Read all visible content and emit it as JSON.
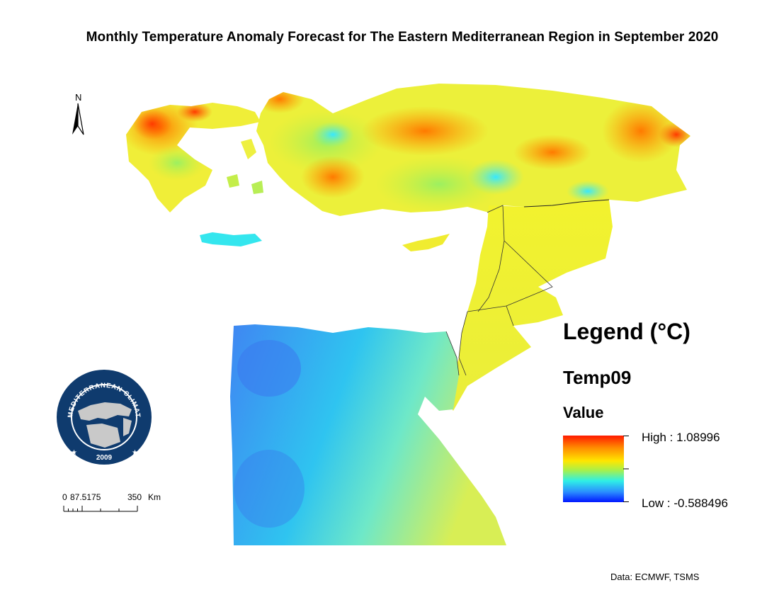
{
  "map": {
    "title": "Monthly Temperature Anomaly Forecast for The Eastern Mediterranean Region in September 2020",
    "north_label": "N",
    "credit": "Data: ECMWF, TSMS",
    "icons": [
      "north-arrow-icon",
      "eastern-mediterranean-climate-centre-logo"
    ]
  },
  "scale_bar": {
    "labels": [
      "0",
      "87.5175",
      "350",
      "Km"
    ]
  },
  "legend": {
    "title": "Legend (°C)",
    "layer_name": "Temp09",
    "field_name": "Value",
    "high_label": "High : 1.08996",
    "low_label": "Low : -0.588496",
    "high_value": 1.08996,
    "low_value": -0.588496,
    "colors": [
      "#ff1a00",
      "#ff8a00",
      "#ffe600",
      "#a8f04a",
      "#2ff0e6",
      "#2a8cff",
      "#0016ff"
    ]
  },
  "logo": {
    "text": "EASTERN MEDITERRANEAN CLIMATE CENTRE",
    "year": "2009",
    "colors": {
      "ring": "#0f3b6e",
      "land": "#c9c9c9"
    }
  }
}
